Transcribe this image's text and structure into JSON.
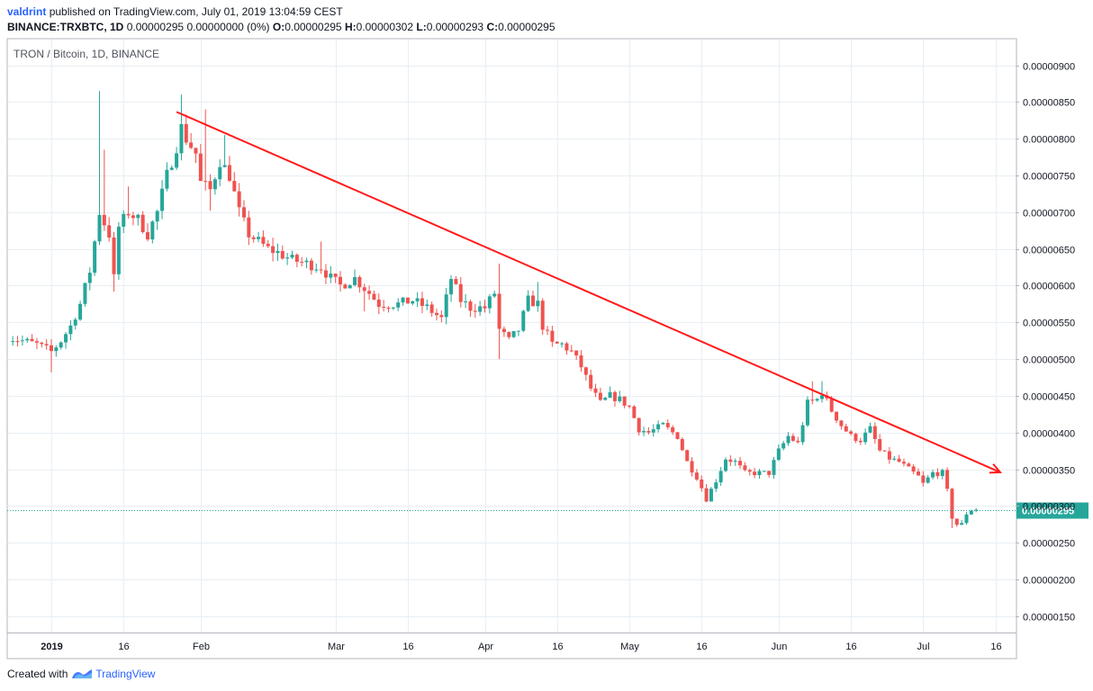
{
  "header": {
    "user": "valdrint",
    "published_text": "published on TradingView.com, July 01, 2019 13:04:59 CEST",
    "symbol": "BINANCE:TRXBTC, 1D",
    "last": "0.00000295",
    "change": "0.00000000 (0%)",
    "ohlc": {
      "o_label": "O:",
      "o": "0.00000295",
      "h_label": "H:",
      "h": "0.00000302",
      "l_label": "L:",
      "l": "0.00000293",
      "c_label": "C:",
      "c": "0.00000295"
    }
  },
  "legend": "TRON / Bitcoin, 1D, BINANCE",
  "footer": {
    "created_with": "Created with",
    "brand": "TradingView"
  },
  "colors": {
    "up": "#26a69a",
    "down": "#ef5350",
    "trend": "#ff1a1a",
    "price_line": "#26a69a",
    "grid": "#e8eef3",
    "brand": "#2962ff"
  },
  "chart_data": {
    "type": "candlestick",
    "title": "TRON / Bitcoin, 1D, BINANCE",
    "y_axis_position": "right",
    "ylim": [
      1.3e-06,
      9.3e-06
    ],
    "y_ticks": [
      "0.00000900",
      "0.00000850",
      "0.00000800",
      "0.00000750",
      "0.00000700",
      "0.00000650",
      "0.00000600",
      "0.00000550",
      "0.00000500",
      "0.00000450",
      "0.00000400",
      "0.00000350",
      "0.00000300",
      "0.00000250",
      "0.00000200",
      "0.00000150"
    ],
    "x_ticks": [
      {
        "label": "2019",
        "day": 0,
        "bold": true
      },
      {
        "label": "16",
        "day": 15
      },
      {
        "label": "Feb",
        "day": 31
      },
      {
        "label": "Mar",
        "day": 59
      },
      {
        "label": "16",
        "day": 74
      },
      {
        "label": "Apr",
        "day": 90
      },
      {
        "label": "16",
        "day": 105
      },
      {
        "label": "May",
        "day": 120
      },
      {
        "label": "16",
        "day": 135
      },
      {
        "label": "Jun",
        "day": 151
      },
      {
        "label": "16",
        "day": 166
      },
      {
        "label": "Jul",
        "day": 181
      },
      {
        "label": "16",
        "day": 196
      }
    ],
    "current_price": "0.00000295",
    "current_price_value": 2.95e-06,
    "trendline": {
      "start": {
        "day": 26,
        "price": 8.365e-06
      },
      "end": {
        "day": 197,
        "price": 3.46e-06
      },
      "arrow": true
    },
    "anchors": [
      [
        -9,
        5.3e-06
      ],
      [
        -6,
        5.25e-06
      ],
      [
        -3,
        5.2e-06
      ],
      [
        0,
        5.1e-06
      ],
      [
        2,
        5.25e-06
      ],
      [
        4,
        5.45e-06
      ],
      [
        6,
        5.75e-06
      ],
      [
        8,
        6.2e-06
      ],
      [
        10,
        7e-06
      ],
      [
        12,
        6.7e-06
      ],
      [
        13,
        6.1e-06
      ],
      [
        14,
        6.8e-06
      ],
      [
        16,
        7e-06
      ],
      [
        18,
        6.9e-06
      ],
      [
        20,
        6.7e-06
      ],
      [
        22,
        7e-06
      ],
      [
        24,
        7.5e-06
      ],
      [
        26,
        7.9e-06
      ],
      [
        27,
        8.15e-06
      ],
      [
        28,
        8e-06
      ],
      [
        30,
        7.8e-06
      ],
      [
        31,
        7.4e-06
      ],
      [
        33,
        7.3e-06
      ],
      [
        35,
        7.7e-06
      ],
      [
        37,
        7.5e-06
      ],
      [
        39,
        7e-06
      ],
      [
        41,
        6.7e-06
      ],
      [
        43,
        6.6e-06
      ],
      [
        45,
        6.5e-06
      ],
      [
        47,
        6.45e-06
      ],
      [
        50,
        6.35e-06
      ],
      [
        53,
        6.3e-06
      ],
      [
        56,
        6.25e-06
      ],
      [
        58,
        6.1e-06
      ],
      [
        60,
        6e-06
      ],
      [
        63,
        6.1e-06
      ],
      [
        66,
        5.9e-06
      ],
      [
        68,
        5.75e-06
      ],
      [
        72,
        5.75e-06
      ],
      [
        75,
        5.8e-06
      ],
      [
        78,
        5.7e-06
      ],
      [
        81,
        5.55e-06
      ],
      [
        83,
        6.1e-06
      ],
      [
        85,
        5.8e-06
      ],
      [
        87,
        5.7e-06
      ],
      [
        90,
        5.7e-06
      ],
      [
        92,
        5.9e-06
      ],
      [
        93,
        5.4e-06
      ],
      [
        95,
        5.25e-06
      ],
      [
        97,
        5.4e-06
      ],
      [
        99,
        5.8e-06
      ],
      [
        101,
        5.75e-06
      ],
      [
        102,
        5.45e-06
      ],
      [
        104,
        5.2e-06
      ],
      [
        106,
        5.2e-06
      ],
      [
        108,
        5.1e-06
      ],
      [
        110,
        4.9e-06
      ],
      [
        112,
        4.6e-06
      ],
      [
        114,
        4.4e-06
      ],
      [
        116,
        4.5e-06
      ],
      [
        118,
        4.45e-06
      ],
      [
        120,
        4.35e-06
      ],
      [
        122,
        4.05e-06
      ],
      [
        124,
        4e-06
      ],
      [
        127,
        4.1e-06
      ],
      [
        130,
        3.95e-06
      ],
      [
        132,
        3.6e-06
      ],
      [
        134,
        3.4e-06
      ],
      [
        136,
        3.1e-06
      ],
      [
        138,
        3.35e-06
      ],
      [
        140,
        3.65e-06
      ],
      [
        142,
        3.6e-06
      ],
      [
        144,
        3.45e-06
      ],
      [
        147,
        3.45e-06
      ],
      [
        149,
        3.45e-06
      ],
      [
        151,
        3.75e-06
      ],
      [
        153,
        3.95e-06
      ],
      [
        155,
        3.85e-06
      ],
      [
        157,
        4.4e-06
      ],
      [
        159,
        4.45e-06
      ],
      [
        160,
        4.55e-06
      ],
      [
        162,
        4.3e-06
      ],
      [
        164,
        4.1e-06
      ],
      [
        166,
        3.95e-06
      ],
      [
        168,
        3.9e-06
      ],
      [
        170,
        4.05e-06
      ],
      [
        172,
        3.75e-06
      ],
      [
        174,
        3.65e-06
      ],
      [
        176,
        3.6e-06
      ],
      [
        178,
        3.5e-06
      ],
      [
        180,
        3.4e-06
      ],
      [
        181,
        3.3e-06
      ],
      [
        183,
        3.45e-06
      ],
      [
        185,
        3.45e-06
      ],
      [
        186,
        3.2e-06
      ],
      [
        187,
        2.85e-06
      ],
      [
        188,
        2.75e-06
      ],
      [
        189,
        2.75e-06
      ],
      [
        190,
        2.9e-06
      ],
      [
        191,
        2.95e-06
      ],
      [
        192,
        2.95e-06
      ]
    ],
    "spikes": [
      [
        10,
        8.65e-06
      ],
      [
        11,
        7.85e-06
      ],
      [
        16,
        7.35e-06
      ],
      [
        27,
        8.6e-06
      ],
      [
        32,
        8.4e-06
      ],
      [
        36,
        8.05e-06
      ],
      [
        56,
        6.6e-06
      ],
      [
        93,
        6.3e-06
      ],
      [
        101,
        6.05e-06
      ],
      [
        158,
        4.7e-06
      ],
      [
        160,
        4.7e-06
      ]
    ],
    "dips": [
      [
        0,
        4.82e-06
      ],
      [
        13,
        5.92e-06
      ],
      [
        33,
        7.02e-06
      ],
      [
        65,
        5.65e-06
      ],
      [
        93,
        5e-06
      ],
      [
        136,
        3.06e-06
      ],
      [
        187,
        2.7e-06
      ]
    ]
  }
}
